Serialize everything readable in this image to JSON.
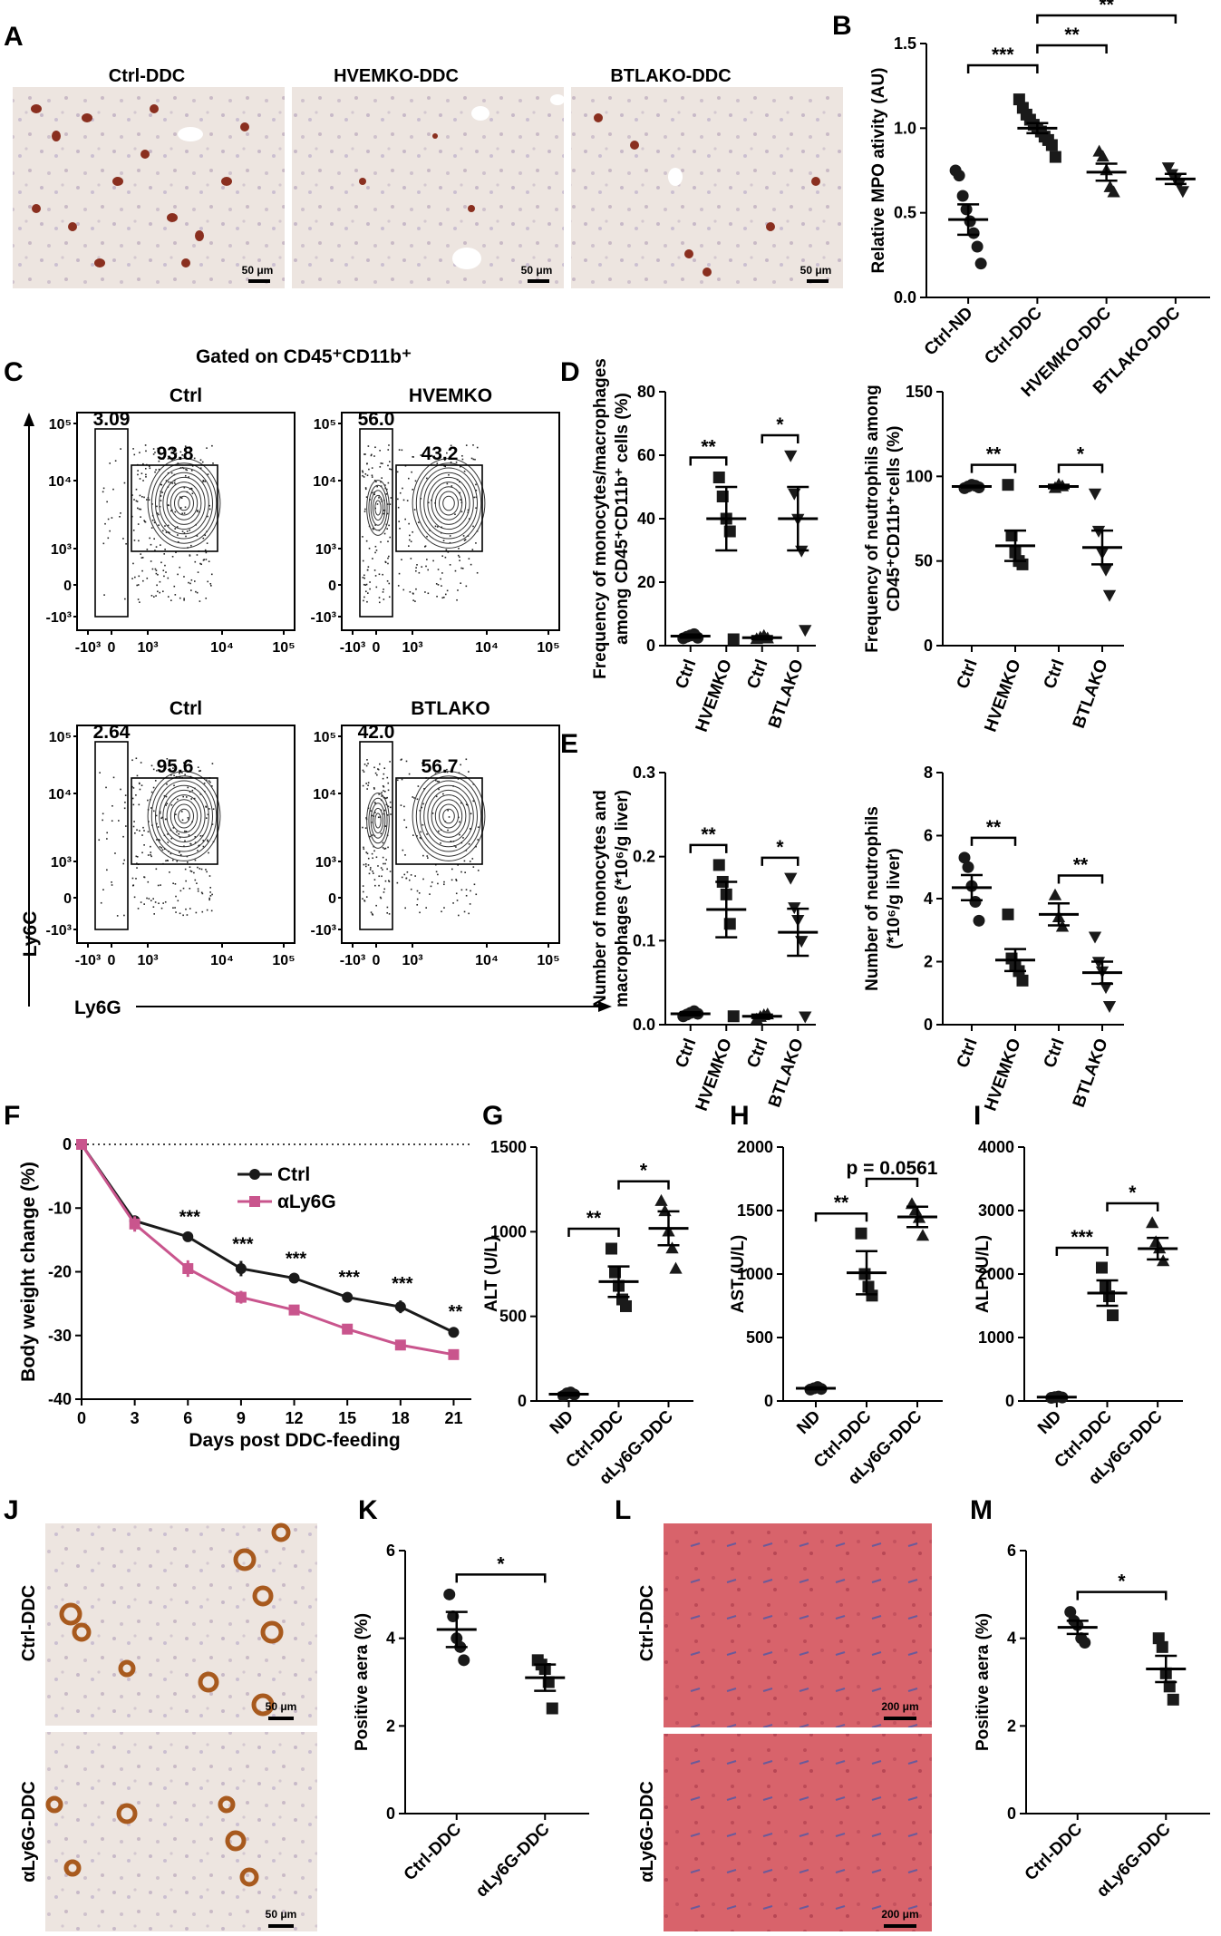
{
  "figure": {
    "panelA": {
      "letter": "A",
      "images": [
        {
          "title": "Ctrl-DDC",
          "scalebar": "50 μm"
        },
        {
          "title": "HVEMKO-DDC",
          "scalebar": "50 μm"
        },
        {
          "title": "BTLAKO-DDC",
          "scalebar": "50 μm"
        }
      ]
    },
    "panelC": {
      "letter": "C",
      "header": "Gated on CD45⁺CD11b⁺",
      "yaxis": "Ly6C",
      "xaxis": "Ly6G",
      "ytick_labels": [
        "10⁵",
        "10⁴",
        "10³",
        "0",
        "-10³"
      ],
      "xtick_labels": [
        "-10³",
        "0",
        "10³",
        "10⁴",
        "10⁵"
      ],
      "plots": [
        {
          "title": "Ctrl",
          "left_gate": "3.09",
          "right_gate": "93.8"
        },
        {
          "title": "HVEMKO",
          "left_gate": "56.0",
          "right_gate": "43.2"
        },
        {
          "title": "Ctrl",
          "left_gate": "2.64",
          "right_gate": "95.6"
        },
        {
          "title": "BTLAKO",
          "left_gate": "42.0",
          "right_gate": "56.7"
        }
      ]
    },
    "panelD": {
      "letter": "D"
    },
    "panelE": {
      "letter": "E"
    },
    "panelF": {
      "letter": "F"
    },
    "panelG": {
      "letter": "G"
    },
    "panelH": {
      "letter": "H"
    },
    "panelI": {
      "letter": "I"
    },
    "panelJ": {
      "letter": "J",
      "rows": [
        {
          "label": "Ctrl-DDC",
          "scalebar": "50 μm"
        },
        {
          "label": "αLy6G-DDC",
          "scalebar": "50 μm"
        }
      ]
    },
    "panelK": {
      "letter": "K"
    },
    "panelL": {
      "letter": "L",
      "rows": [
        {
          "label": "Ctrl-DDC",
          "scalebar": "200 μm"
        },
        {
          "label": "αLy6G-DDC",
          "scalebar": "200 μm"
        }
      ]
    },
    "panelM": {
      "letter": "M"
    }
  },
  "chart_data": [
    {
      "id": "B",
      "type": "scatter",
      "ylabel": "Relative MPO ativity (AU)",
      "ylim": [
        0,
        1.5
      ],
      "yticks": [
        "0.0",
        "0.5",
        "1.0",
        "1.5"
      ],
      "categories": [
        "Ctrl-ND",
        "Ctrl-DDC",
        "HVEMKO-DDC",
        "BTLAKO-DDC"
      ],
      "markers": [
        "circle",
        "square",
        "triangle",
        "triangle-down"
      ],
      "means": [
        0.46,
        1.0,
        0.74,
        0.7
      ],
      "sems": [
        0.09,
        0.03,
        0.05,
        0.03
      ],
      "points": [
        [
          0.75,
          0.72,
          0.6,
          0.52,
          0.45,
          0.38,
          0.3,
          0.2
        ],
        [
          1.17,
          1.12,
          1.08,
          1.05,
          1.02,
          1.0,
          0.98,
          0.95,
          0.93,
          0.9,
          0.83
        ],
        [
          0.86,
          0.83,
          0.75,
          0.65,
          0.62
        ],
        [
          0.77,
          0.73,
          0.7,
          0.67,
          0.63
        ]
      ],
      "significance": [
        {
          "from": 0,
          "to": 1,
          "label": "***"
        },
        {
          "from": 1,
          "to": 2,
          "label": "**"
        },
        {
          "from": 1,
          "to": 3,
          "label": "**"
        }
      ]
    },
    {
      "id": "D1",
      "type": "scatter",
      "ylabel": [
        "Frequency of monocytes/macrophages",
        "among CD45⁺CD11b⁺ cells (%)"
      ],
      "ylim": [
        0,
        80
      ],
      "yticks": [
        "0",
        "20",
        "40",
        "60",
        "80"
      ],
      "categories": [
        "Ctrl",
        "HVEMKO",
        "Ctrl",
        "BTLAKO"
      ],
      "markers": [
        "circle",
        "square",
        "triangle",
        "triangle-down"
      ],
      "means": [
        3,
        40,
        2.5,
        40
      ],
      "sems": [
        0.5,
        10,
        0.5,
        10
      ],
      "points": [
        [
          2.3,
          2.8,
          3.2,
          3.6,
          2.5
        ],
        [
          53,
          47,
          40,
          36,
          2
        ],
        [
          2,
          2.5,
          3,
          2.2
        ],
        [
          60,
          48,
          40,
          30,
          5
        ]
      ],
      "significance": [
        {
          "from": 0,
          "to": 1,
          "label": "**"
        },
        {
          "from": 2,
          "to": 3,
          "label": "*"
        }
      ]
    },
    {
      "id": "D2",
      "type": "scatter",
      "ylabel": [
        "Frequency of neutrophils among",
        "CD45⁺CD11b⁺cells (%)"
      ],
      "ylim": [
        0,
        150
      ],
      "yticks": [
        "0",
        "50",
        "100",
        "150"
      ],
      "categories": [
        "Ctrl",
        "HVEMKO",
        "Ctrl",
        "BTLAKO"
      ],
      "markers": [
        "circle",
        "square",
        "triangle",
        "triangle-down"
      ],
      "means": [
        94,
        59,
        94,
        58
      ],
      "sems": [
        0.5,
        9,
        1,
        10
      ],
      "points": [
        [
          93,
          94,
          95,
          94.5,
          93.5
        ],
        [
          95,
          65,
          55,
          50,
          48
        ],
        [
          93,
          95,
          94
        ],
        [
          90,
          68,
          55,
          45,
          30
        ]
      ],
      "significance": [
        {
          "from": 0,
          "to": 1,
          "label": "**"
        },
        {
          "from": 2,
          "to": 3,
          "label": "*"
        }
      ]
    },
    {
      "id": "E1",
      "type": "scatter",
      "ylabel": [
        "Number of monocytes and",
        "macrophages (*10⁶/g liver)"
      ],
      "ylim": [
        0,
        0.3
      ],
      "yticks": [
        "0.0",
        "0.1",
        "0.2",
        "0.3"
      ],
      "categories": [
        "Ctrl",
        "HVEMKO",
        "Ctrl",
        "BTLAKO"
      ],
      "markers": [
        "circle",
        "square",
        "triangle",
        "triangle-down"
      ],
      "means": [
        0.013,
        0.137,
        0.01,
        0.11
      ],
      "sems": [
        0.002,
        0.033,
        0.002,
        0.028
      ],
      "points": [
        [
          0.01,
          0.012,
          0.014,
          0.016,
          0.013
        ],
        [
          0.19,
          0.17,
          0.155,
          0.12,
          0.01
        ],
        [
          0.006,
          0.009,
          0.011,
          0.012
        ],
        [
          0.175,
          0.14,
          0.125,
          0.1,
          0.01
        ]
      ],
      "significance": [
        {
          "from": 0,
          "to": 1,
          "label": "**"
        },
        {
          "from": 2,
          "to": 3,
          "label": "*"
        }
      ]
    },
    {
      "id": "E2",
      "type": "scatter",
      "ylabel": [
        "Number of neutrophils",
        "(*10⁶/g liver)"
      ],
      "ylim": [
        0,
        8
      ],
      "yticks": [
        "0",
        "2",
        "4",
        "6",
        "8"
      ],
      "categories": [
        "Ctrl",
        "HVEMKO",
        "Ctrl",
        "BTLAKO"
      ],
      "markers": [
        "circle",
        "square",
        "triangle",
        "triangle-down"
      ],
      "means": [
        4.35,
        2.05,
        3.5,
        1.65
      ],
      "sems": [
        0.4,
        0.35,
        0.35,
        0.35
      ],
      "points": [
        [
          5.3,
          5.0,
          4.4,
          3.9,
          3.3
        ],
        [
          3.5,
          2.1,
          1.9,
          1.7,
          1.4
        ],
        [
          4.1,
          3.4,
          3.1
        ],
        [
          2.8,
          2.0,
          1.7,
          1.2,
          0.6
        ]
      ],
      "significance": [
        {
          "from": 0,
          "to": 1,
          "label": "**"
        },
        {
          "from": 2,
          "to": 3,
          "label": "**"
        }
      ]
    },
    {
      "id": "F",
      "type": "line",
      "xlabel": "Days post DDC-feeding",
      "ylabel": "Body weight change (%)",
      "xlim": [
        0,
        22
      ],
      "ylim": [
        -40,
        0
      ],
      "x": [
        0,
        3,
        6,
        9,
        12,
        15,
        18,
        21
      ],
      "yticks": [
        "0",
        "-10",
        "-20",
        "-30",
        "-40"
      ],
      "series": [
        {
          "name": "Ctrl",
          "color": "#1a1a1a",
          "values": [
            0,
            -12,
            -14.5,
            -19.5,
            -21,
            -24,
            -25.5,
            -29.5
          ],
          "err": [
            0,
            0.8,
            0.5,
            1.2,
            0.4,
            0.5,
            1.0,
            0.6
          ]
        },
        {
          "name": "αLy6G",
          "color": "#c9558d",
          "values": [
            0,
            -12.5,
            -19.5,
            -24,
            -26,
            -29,
            -31.5,
            -33
          ],
          "err": [
            0,
            1.2,
            1.3,
            1.0,
            0.4,
            0.4,
            0.4,
            0.4
          ]
        }
      ],
      "annotations": [
        {
          "x": 6,
          "label": "***"
        },
        {
          "x": 9,
          "label": "***"
        },
        {
          "x": 12,
          "label": "***"
        },
        {
          "x": 15,
          "label": "***"
        },
        {
          "x": 18,
          "label": "***"
        },
        {
          "x": 21,
          "label": "**"
        }
      ]
    },
    {
      "id": "G",
      "type": "scatter",
      "ylabel": "ALT (U/L)",
      "ylim": [
        0,
        1500
      ],
      "yticks": [
        "0",
        "500",
        "1000",
        "1500"
      ],
      "categories": [
        "ND",
        "Ctrl-DDC",
        "αLy6G-DDC"
      ],
      "markers": [
        "circle",
        "square",
        "triangle"
      ],
      "means": [
        40,
        705,
        1020
      ],
      "sems": [
        8,
        90,
        100
      ],
      "points": [
        [
          30,
          45,
          50,
          38
        ],
        [
          900,
          760,
          680,
          600,
          560
        ],
        [
          1180,
          1120,
          1000,
          900,
          780
        ]
      ],
      "significance": [
        {
          "from": 0,
          "to": 1,
          "label": "**"
        },
        {
          "from": 1,
          "to": 2,
          "label": "*"
        }
      ]
    },
    {
      "id": "H",
      "type": "scatter",
      "ylabel": "AST (U/L)",
      "ylim": [
        0,
        2000
      ],
      "yticks": [
        "0",
        "500",
        "1000",
        "1500",
        "2000"
      ],
      "categories": [
        "ND",
        "Ctrl-DDC",
        "αLy6G-DDC"
      ],
      "markers": [
        "circle",
        "square",
        "triangle"
      ],
      "means": [
        100,
        1010,
        1450
      ],
      "sems": [
        8,
        170,
        80
      ],
      "points": [
        [
          90,
          100,
          110,
          95
        ],
        [
          1320,
          1000,
          900,
          830
        ],
        [
          1550,
          1500,
          1440,
          1300
        ]
      ],
      "significance": [
        {
          "from": 0,
          "to": 1,
          "label": "**"
        },
        {
          "from": 1,
          "to": 2,
          "label": "p = 0.0561"
        }
      ]
    },
    {
      "id": "I",
      "type": "scatter",
      "ylabel": "ALP (U/L)",
      "ylim": [
        0,
        4000
      ],
      "yticks": [
        "0",
        "1000",
        "2000",
        "3000",
        "4000"
      ],
      "categories": [
        "ND",
        "Ctrl-DDC",
        "αLy6G-DDC"
      ],
      "markers": [
        "circle",
        "square",
        "triangle"
      ],
      "means": [
        60,
        1700,
        2400
      ],
      "sems": [
        10,
        200,
        170
      ],
      "points": [
        [
          50,
          60,
          70,
          55
        ],
        [
          2100,
          1800,
          1650,
          1350
        ],
        [
          2800,
          2500,
          2400,
          2200
        ]
      ],
      "significance": [
        {
          "from": 0,
          "to": 1,
          "label": "***"
        },
        {
          "from": 1,
          "to": 2,
          "label": "*"
        }
      ]
    },
    {
      "id": "K",
      "type": "scatter",
      "ylabel": "Positive aera (%)",
      "ylim": [
        0,
        6
      ],
      "yticks": [
        "0",
        "2",
        "4",
        "6"
      ],
      "categories": [
        "Ctrl-DDC",
        "αLy6G-DDC"
      ],
      "markers": [
        "circle",
        "square"
      ],
      "means": [
        4.2,
        3.1
      ],
      "sems": [
        0.4,
        0.3
      ],
      "points": [
        [
          5.0,
          4.5,
          4.0,
          3.8,
          3.5
        ],
        [
          3.5,
          3.4,
          3.3,
          3.0,
          2.4
        ]
      ],
      "significance": [
        {
          "from": 0,
          "to": 1,
          "label": "*"
        }
      ]
    },
    {
      "id": "M",
      "type": "scatter",
      "ylabel": "Positive aera (%)",
      "ylim": [
        0,
        6
      ],
      "yticks": [
        "0",
        "2",
        "4",
        "6"
      ],
      "categories": [
        "Ctrl-DDC",
        "αLy6G-DDC"
      ],
      "markers": [
        "circle",
        "square"
      ],
      "means": [
        4.25,
        3.3
      ],
      "sems": [
        0.15,
        0.3
      ],
      "points": [
        [
          4.6,
          4.4,
          4.3,
          4.0,
          3.9
        ],
        [
          4.0,
          3.8,
          3.2,
          2.9,
          2.6
        ]
      ],
      "significance": [
        {
          "from": 0,
          "to": 1,
          "label": "*"
        }
      ]
    }
  ]
}
